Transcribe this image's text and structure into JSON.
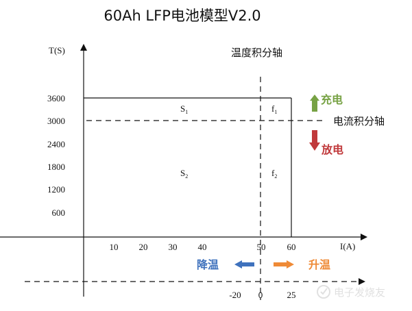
{
  "title": "60Ah LFP电池模型V2.0",
  "y_axis_label": "T(S)",
  "x_axis_label": "I(A)",
  "temperature_axis_label": "温度积分轴",
  "current_axis_label": "电流积分轴",
  "y_ticks": [
    "3600",
    "3000",
    "2400",
    "1800",
    "1200",
    "600"
  ],
  "x_ticks": [
    "10",
    "20",
    "30",
    "40",
    "50",
    "60"
  ],
  "temp_ticks": [
    "-20",
    "0",
    "25"
  ],
  "regions": {
    "s1": {
      "base": "S",
      "sub": "1"
    },
    "s2": {
      "base": "S",
      "sub": "2"
    },
    "f1": {
      "base": "f",
      "sub": "1"
    },
    "f2": {
      "base": "f",
      "sub": "2"
    }
  },
  "arrows": {
    "charge": {
      "label": "充电",
      "color": "#77a244"
    },
    "discharge": {
      "label": "放电",
      "color": "#c0393b"
    },
    "cool": {
      "label": "降温",
      "color": "#3f72bd"
    },
    "heat": {
      "label": "升温",
      "color": "#ef8a36"
    }
  },
  "watermark": "电子发烧友"
}
